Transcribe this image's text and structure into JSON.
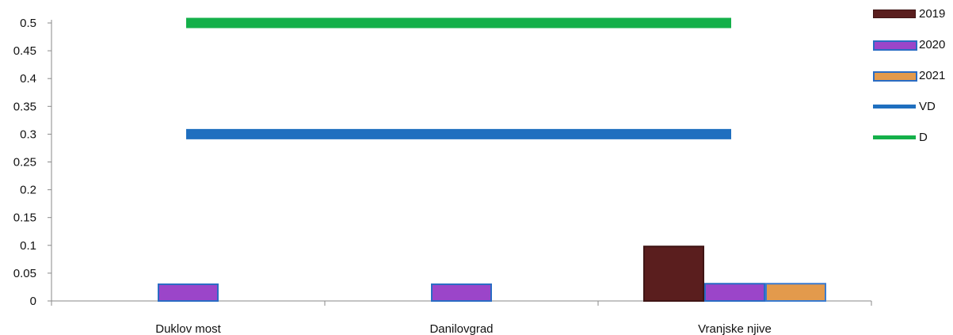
{
  "chart_data": {
    "type": "bar",
    "title": "",
    "xlabel": "",
    "ylabel": "",
    "ylim": [
      0,
      0.5
    ],
    "yticks": [
      "0",
      "0.05",
      "0.1",
      "0.15",
      "0.2",
      "0.25",
      "0.3",
      "0.35",
      "0.4",
      "0.45",
      "0.5"
    ],
    "categories": [
      "Duklov most",
      "Danilovgrad",
      "Vranjske njive"
    ],
    "series": [
      {
        "name": "2019",
        "values": [
          0,
          0,
          0.098
        ],
        "color": "#5a1e1e"
      },
      {
        "name": "2020",
        "values": [
          0.03,
          0.03,
          0.031
        ],
        "color": "#9b45c9"
      },
      {
        "name": "2021",
        "values": [
          0,
          0,
          0.031
        ],
        "color": "#e39a4c"
      }
    ],
    "reference_lines": [
      {
        "name": "VD",
        "value": 0.3,
        "color": "#1f6fbf"
      },
      {
        "name": "D",
        "value": 0.5,
        "color": "#14b04a"
      }
    ],
    "legend_position": "right",
    "grid": false
  }
}
